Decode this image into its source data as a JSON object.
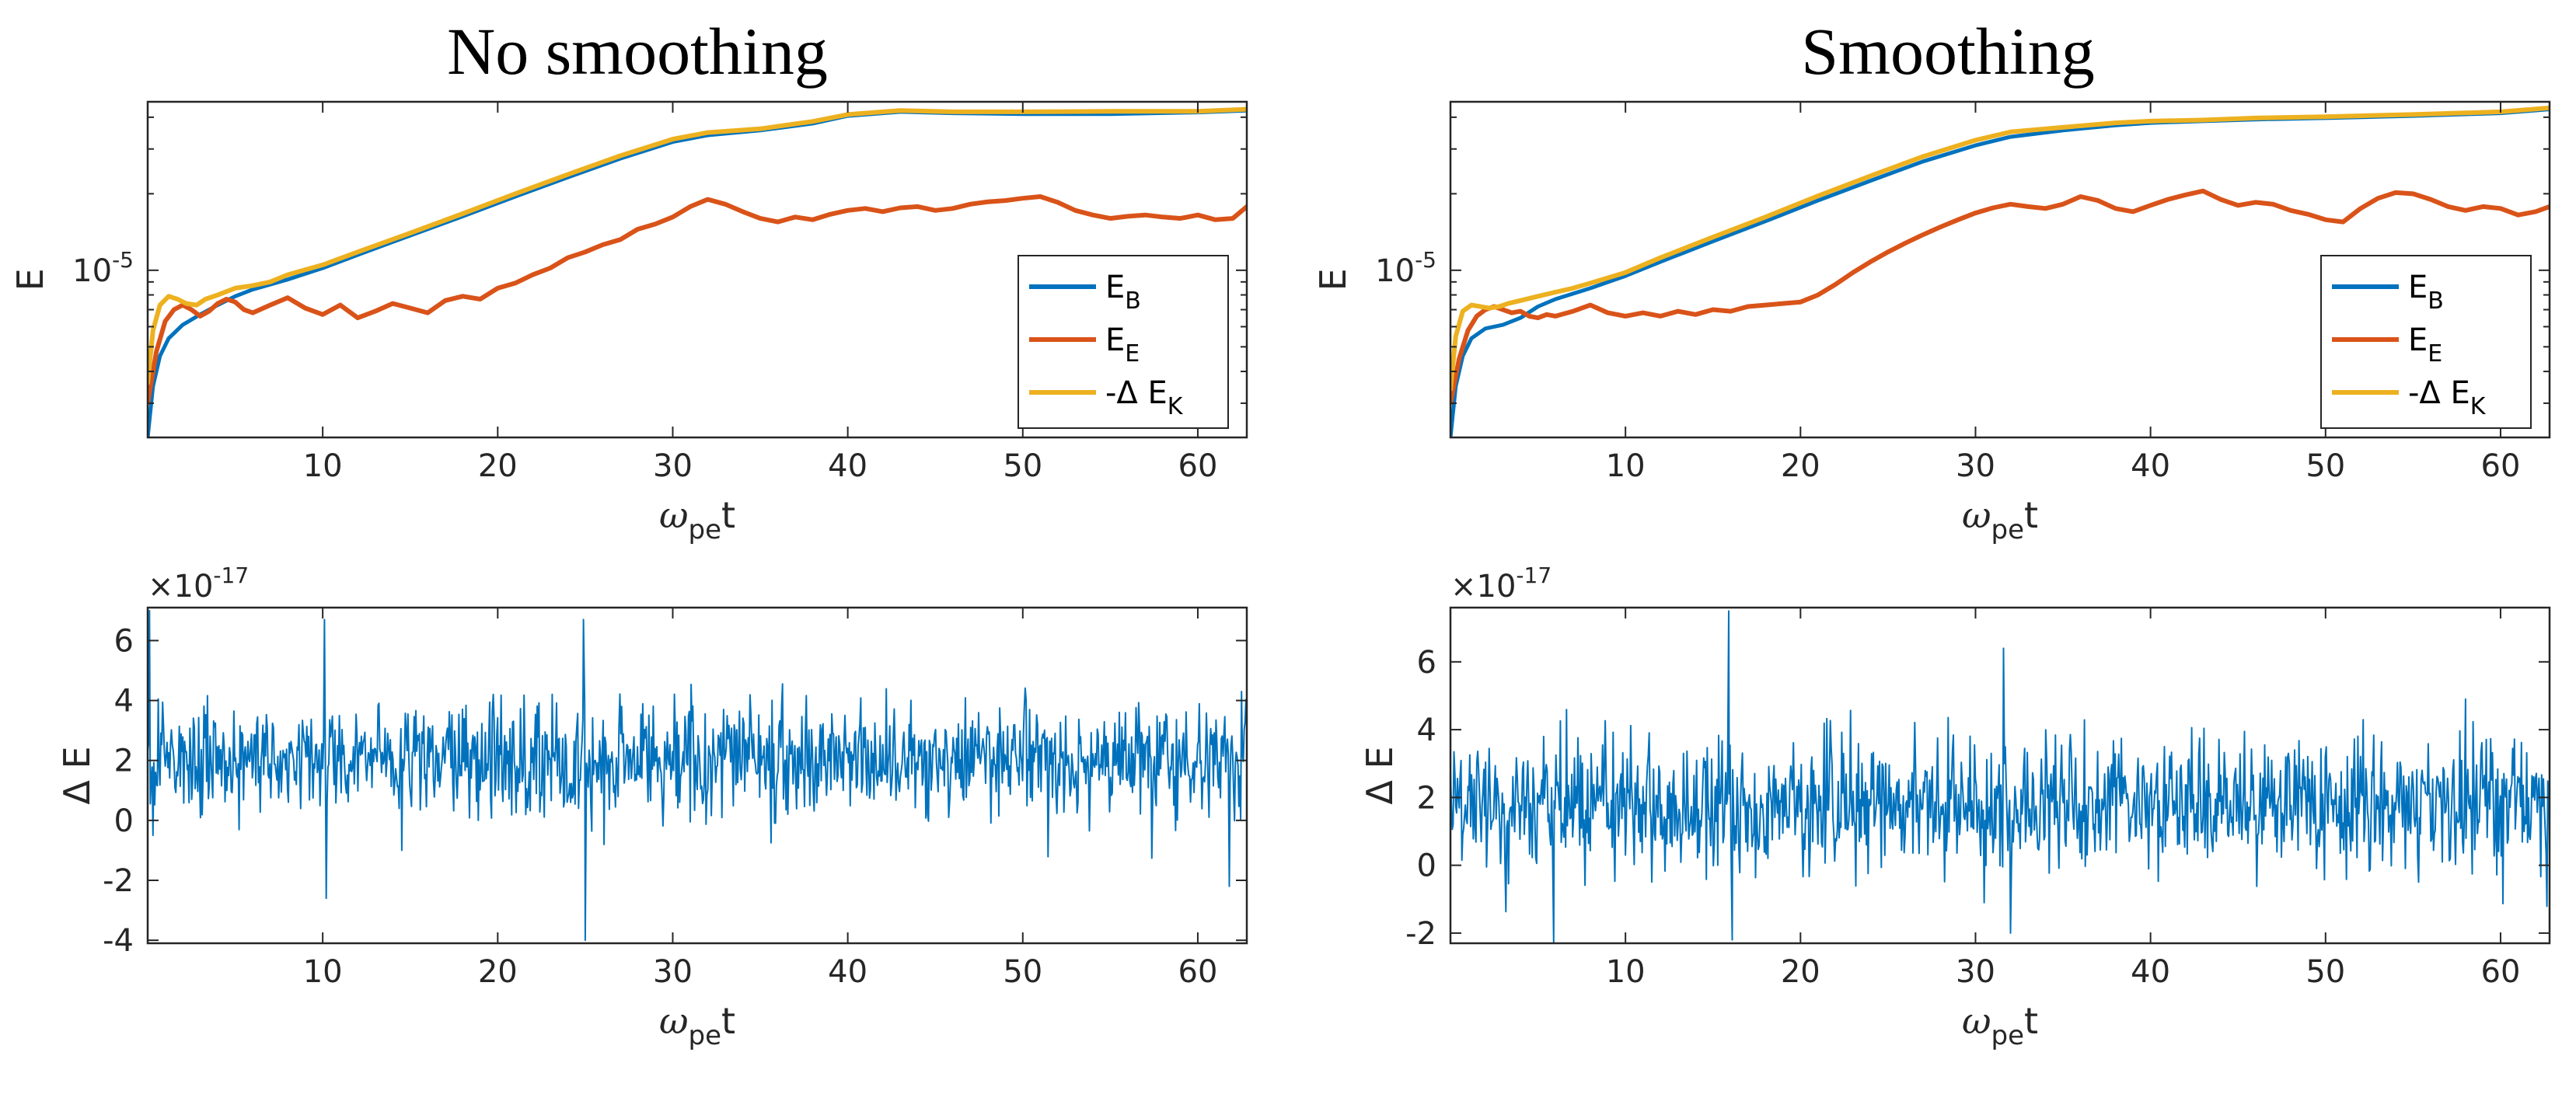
{
  "figure": {
    "panel_titles": [
      "No smoothing",
      "Smoothing"
    ]
  },
  "chart_data": [
    {
      "id": "energy-no-smoothing",
      "panel": "top-left",
      "title": "No smoothing",
      "type": "line",
      "ylabel": "E",
      "xlabel": "ω_pe t",
      "xlabel_main": "ω",
      "xlabel_sub": "pe",
      "xlabel_tail": "t",
      "yscale": "log",
      "xlim": [
        0,
        62.8
      ],
      "ylim": [
        2.2e-06,
        4.6e-05
      ],
      "xticks": [
        10,
        20,
        30,
        40,
        50,
        60
      ],
      "ytick_label_main": "10",
      "ytick_label_exp": "-5",
      "legend_position": "right-middle",
      "legend": [
        "E_B",
        "E_E",
        "-Δ E_K"
      ],
      "series": [
        {
          "name": "E_B",
          "label_main": "E",
          "label_sub": "B",
          "color": "#0072BD",
          "x": [
            0,
            0.3,
            0.7,
            1.2,
            2,
            3,
            4,
            5,
            6,
            8,
            10,
            12,
            15,
            18,
            21,
            24,
            27,
            30,
            32,
            35,
            38,
            40,
            43,
            46,
            50,
            55,
            60,
            62.8
          ],
          "y": [
            2.2e-06,
            3.5e-06,
            4.6e-06,
            5.4e-06,
            6.1e-06,
            6.7e-06,
            7.3e-06,
            7.9e-06,
            8.4e-06,
            9.2e-06,
            1.02e-05,
            1.15e-05,
            1.37e-05,
            1.63e-05,
            1.95e-05,
            2.32e-05,
            2.75e-05,
            3.2e-05,
            3.4e-05,
            3.55e-05,
            3.78e-05,
            4.05e-05,
            4.2e-05,
            4.15e-05,
            4.12e-05,
            4.12e-05,
            4.18e-05,
            4.25e-05
          ]
        },
        {
          "name": "E_E",
          "label_main": "E",
          "label_sub": "E",
          "color": "#D95319",
          "x": [
            0,
            0.5,
            1,
            1.5,
            2,
            2.5,
            3,
            3.5,
            4,
            4.5,
            5,
            5.5,
            6,
            7,
            8,
            9,
            10,
            11,
            12,
            13,
            14,
            15,
            16,
            17,
            18,
            19,
            20,
            21,
            22,
            23,
            24,
            25,
            26,
            27,
            28,
            29,
            30,
            31,
            32,
            33,
            34,
            35,
            36,
            37,
            38,
            39,
            40,
            41,
            42,
            43,
            44,
            45,
            46,
            47,
            48,
            49,
            50,
            51,
            52,
            53,
            54,
            55,
            56,
            57,
            58,
            59,
            60,
            61,
            62,
            62.8
          ],
          "y": [
            3e-06,
            4.8e-06,
            6.3e-06,
            7e-06,
            7.3e-06,
            7e-06,
            6.6e-06,
            6.9e-06,
            7.4e-06,
            7.7e-06,
            7.5e-06,
            7e-06,
            6.8e-06,
            7.3e-06,
            7.8e-06,
            7.1e-06,
            6.7e-06,
            7.3e-06,
            6.5e-06,
            6.9e-06,
            7.4e-06,
            7.1e-06,
            6.8e-06,
            7.6e-06,
            7.9e-06,
            7.7e-06,
            8.5e-06,
            8.9e-06,
            9.6e-06,
            1.02e-05,
            1.12e-05,
            1.18e-05,
            1.26e-05,
            1.32e-05,
            1.45e-05,
            1.52e-05,
            1.62e-05,
            1.78e-05,
            1.9e-05,
            1.82e-05,
            1.7e-05,
            1.6e-05,
            1.55e-05,
            1.62e-05,
            1.58e-05,
            1.66e-05,
            1.72e-05,
            1.75e-05,
            1.7e-05,
            1.76e-05,
            1.78e-05,
            1.72e-05,
            1.75e-05,
            1.82e-05,
            1.86e-05,
            1.88e-05,
            1.92e-05,
            1.95e-05,
            1.85e-05,
            1.72e-05,
            1.65e-05,
            1.6e-05,
            1.63e-05,
            1.65e-05,
            1.62e-05,
            1.6e-05,
            1.65e-05,
            1.58e-05,
            1.6e-05,
            1.78e-05
          ]
        },
        {
          "name": "-Δ E_K",
          "label_main": "-Δ E",
          "label_sub": "K",
          "color": "#EDB120",
          "x": [
            0,
            0.3,
            0.7,
            1.2,
            1.7,
            2.2,
            2.8,
            3.3,
            4,
            5,
            6,
            7,
            8,
            10,
            12,
            15,
            18,
            21,
            24,
            27,
            30,
            32,
            35,
            38,
            40,
            43,
            46,
            50,
            55,
            60,
            62.8
          ],
          "y": [
            3.6e-06,
            5.8e-06,
            7.3e-06,
            7.9e-06,
            7.7e-06,
            7.4e-06,
            7.3e-06,
            7.7e-06,
            8e-06,
            8.5e-06,
            8.7e-06,
            9e-06,
            9.6e-06,
            1.05e-05,
            1.18e-05,
            1.4e-05,
            1.67e-05,
            2e-05,
            2.38e-05,
            2.82e-05,
            3.28e-05,
            3.48e-05,
            3.6e-05,
            3.85e-05,
            4.1e-05,
            4.25e-05,
            4.2e-05,
            4.2e-05,
            4.22e-05,
            4.22e-05,
            4.3e-05
          ]
        }
      ]
    },
    {
      "id": "energy-smoothing",
      "panel": "top-right",
      "title": "Smoothing",
      "type": "line",
      "ylabel": "E",
      "xlabel": "ω_pe t",
      "xlabel_main": "ω",
      "xlabel_sub": "pe",
      "xlabel_tail": "t",
      "yscale": "log",
      "xlim": [
        0,
        62.8
      ],
      "ylim": [
        2.2e-06,
        4.6e-05
      ],
      "xticks": [
        10,
        20,
        30,
        40,
        50,
        60
      ],
      "ytick_label_main": "10",
      "ytick_label_exp": "-5",
      "legend_position": "right-middle",
      "legend": [
        "E_B",
        "E_E",
        "-Δ E_K"
      ],
      "series": [
        {
          "name": "E_B",
          "label_main": "E",
          "label_sub": "B",
          "color": "#0072BD",
          "x": [
            0,
            0.3,
            0.7,
            1.2,
            2,
            3,
            4,
            5,
            6,
            8,
            10,
            12,
            15,
            18,
            21,
            24,
            27,
            30,
            32,
            35,
            38,
            40,
            43,
            46,
            50,
            55,
            60,
            62.8
          ],
          "y": [
            2.2e-06,
            3.5e-06,
            4.6e-06,
            5.4e-06,
            5.9e-06,
            6.1e-06,
            6.5e-06,
            7.2e-06,
            7.7e-06,
            8.5e-06,
            9.5e-06,
            1.08e-05,
            1.3e-05,
            1.56e-05,
            1.88e-05,
            2.25e-05,
            2.68e-05,
            3.1e-05,
            3.35e-05,
            3.55e-05,
            3.72e-05,
            3.8e-05,
            3.86e-05,
            3.92e-05,
            3.97e-05,
            4.05e-05,
            4.15e-05,
            4.3e-05
          ]
        },
        {
          "name": "E_E",
          "label_main": "E",
          "label_sub": "E",
          "color": "#D95319",
          "x": [
            0,
            0.5,
            1,
            1.5,
            2,
            2.5,
            3,
            3.5,
            4,
            4.5,
            5,
            5.5,
            6,
            7,
            8,
            9,
            10,
            11,
            12,
            13,
            14,
            15,
            16,
            17,
            18,
            19,
            20,
            21,
            22,
            23,
            24,
            25,
            26,
            27,
            28,
            29,
            30,
            31,
            32,
            33,
            34,
            35,
            36,
            37,
            38,
            39,
            40,
            41,
            42,
            43,
            44,
            45,
            46,
            47,
            48,
            49,
            50,
            51,
            52,
            53,
            54,
            55,
            56,
            57,
            58,
            59,
            60,
            61,
            62,
            62.8
          ],
          "y": [
            3e-06,
            4.5e-06,
            5.8e-06,
            6.6e-06,
            7e-06,
            7.2e-06,
            7e-06,
            6.8e-06,
            6.9e-06,
            6.6e-06,
            6.5e-06,
            6.7e-06,
            6.6e-06,
            6.9e-06,
            7.3e-06,
            6.8e-06,
            6.6e-06,
            6.8e-06,
            6.6e-06,
            6.9e-06,
            6.7e-06,
            7e-06,
            6.9e-06,
            7.2e-06,
            7.3e-06,
            7.4e-06,
            7.5e-06,
            8e-06,
            8.8e-06,
            9.8e-06,
            1.08e-05,
            1.18e-05,
            1.28e-05,
            1.38e-05,
            1.48e-05,
            1.58e-05,
            1.68e-05,
            1.76e-05,
            1.82e-05,
            1.78e-05,
            1.75e-05,
            1.82e-05,
            1.95e-05,
            1.88e-05,
            1.75e-05,
            1.7e-05,
            1.8e-05,
            1.9e-05,
            1.98e-05,
            2.05e-05,
            1.9e-05,
            1.8e-05,
            1.85e-05,
            1.82e-05,
            1.72e-05,
            1.66e-05,
            1.58e-05,
            1.55e-05,
            1.75e-05,
            1.92e-05,
            2.02e-05,
            2e-05,
            1.9e-05,
            1.78e-05,
            1.72e-05,
            1.78e-05,
            1.75e-05,
            1.65e-05,
            1.7e-05,
            1.78e-05
          ]
        },
        {
          "name": "-Δ E_K",
          "label_main": "-Δ E",
          "label_sub": "K",
          "color": "#EDB120",
          "x": [
            0,
            0.3,
            0.7,
            1.2,
            1.7,
            2.2,
            2.8,
            3.3,
            4,
            5,
            6,
            7,
            8,
            10,
            12,
            15,
            18,
            21,
            24,
            27,
            30,
            32,
            35,
            38,
            40,
            43,
            46,
            50,
            55,
            60,
            62.8
          ],
          "y": [
            3.4e-06,
            5.5e-06,
            6.9e-06,
            7.3e-06,
            7.2e-06,
            7.1e-06,
            7.2e-06,
            7.4e-06,
            7.6e-06,
            7.9e-06,
            8.2e-06,
            8.5e-06,
            8.9e-06,
            9.8e-06,
            1.12e-05,
            1.35e-05,
            1.62e-05,
            1.96e-05,
            2.35e-05,
            2.8e-05,
            3.25e-05,
            3.5e-05,
            3.65e-05,
            3.8e-05,
            3.86e-05,
            3.9e-05,
            3.97e-05,
            4.02e-05,
            4.1e-05,
            4.2e-05,
            4.35e-05
          ]
        }
      ]
    },
    {
      "id": "delta-e-no-smoothing",
      "panel": "bottom-left",
      "type": "line",
      "ylabel": "Δ E",
      "xlabel": "ω_pe t",
      "xlabel_main": "ω",
      "xlabel_sub": "pe",
      "xlabel_tail": "t",
      "multiplier_main": "×10",
      "multiplier_exp": "-17",
      "xlim": [
        0,
        62.8
      ],
      "ylim": [
        -4.1,
        7.1
      ],
      "xticks": [
        10,
        20,
        30,
        40,
        50,
        60
      ],
      "yticks": [
        -4,
        -2,
        0,
        2,
        4,
        6
      ],
      "series": [
        {
          "name": "ΔE",
          "color": "#0072BD",
          "noise": {
            "samples": 1250,
            "mean": 2.0,
            "std": 0.95,
            "seed": 17
          },
          "spikes": [
            [
              0.1,
              7.0
            ],
            [
              0.3,
              -0.5
            ],
            [
              10.1,
              6.7
            ],
            [
              10.2,
              -2.6
            ],
            [
              25.0,
              -4.0
            ],
            [
              24.9,
              6.7
            ],
            [
              61.8,
              -2.2
            ],
            [
              62.5,
              4.3
            ]
          ]
        }
      ]
    },
    {
      "id": "delta-e-smoothing",
      "panel": "bottom-right",
      "type": "line",
      "ylabel": "Δ E",
      "xlabel": "ω_pe t",
      "xlabel_main": "ω",
      "xlabel_sub": "pe",
      "xlabel_tail": "t",
      "multiplier_main": "×10",
      "multiplier_exp": "-17",
      "xlim": [
        0,
        62.8
      ],
      "ylim": [
        -2.3,
        7.6
      ],
      "xticks": [
        10,
        20,
        30,
        40,
        50,
        60
      ],
      "yticks": [
        -2,
        0,
        2,
        4,
        6
      ],
      "series": [
        {
          "name": "ΔE",
          "color": "#0072BD",
          "noise": {
            "samples": 1250,
            "mean": 1.8,
            "std": 0.95,
            "seed": 29
          },
          "spikes": [
            [
              5.9,
              -2.3
            ],
            [
              15.9,
              7.5
            ],
            [
              16.1,
              -2.2
            ],
            [
              31.6,
              6.4
            ],
            [
              32.0,
              -2.0
            ],
            [
              58.0,
              4.9
            ]
          ]
        }
      ]
    }
  ]
}
